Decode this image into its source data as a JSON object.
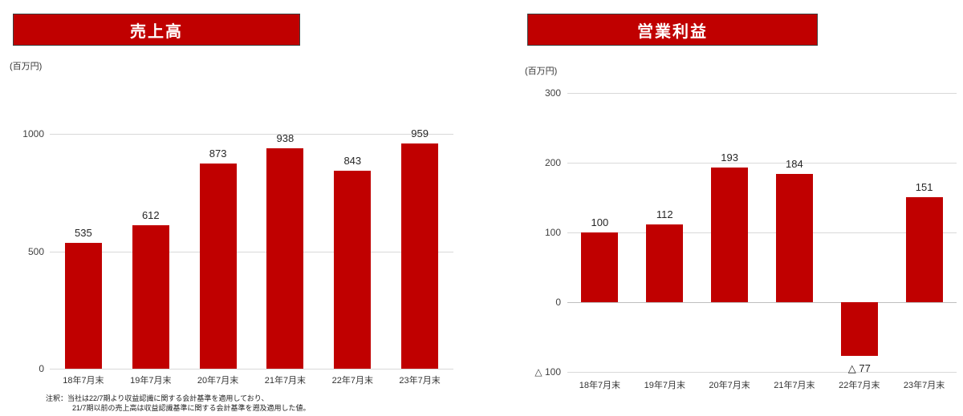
{
  "chart_data": [
    {
      "type": "bar",
      "title": "売上高",
      "unit_label": "(百万円)",
      "categories": [
        "18年7月末",
        "19年7月末",
        "20年7月末",
        "21年7月末",
        "22年7月末",
        "23年7月末"
      ],
      "values": [
        535,
        612,
        873,
        938,
        843,
        959
      ],
      "value_labels": [
        "535",
        "612",
        "873",
        "938",
        "843",
        "959"
      ],
      "ylim": [
        0,
        1000
      ],
      "yticks": [
        {
          "value": 1000,
          "label": "1000"
        },
        {
          "value": 500,
          "label": "500"
        },
        {
          "value": 0,
          "label": "0"
        }
      ],
      "grid": true,
      "legend": "none",
      "bar_color": "#c00000",
      "note_lines": [
        "注釈：当社は22/7期より収益認識に関する会計基準を適用しており、",
        "21/7期以前の売上高は収益認識基準に関する会計基準を遡及適用した値。"
      ]
    },
    {
      "type": "bar",
      "title": "営業利益",
      "unit_label": "(百万円)",
      "categories": [
        "18年7月末",
        "19年7月末",
        "20年7月末",
        "21年7月末",
        "22年7月末",
        "23年7月末"
      ],
      "values": [
        100,
        112,
        193,
        184,
        -77,
        151
      ],
      "value_labels": [
        "100",
        "112",
        "193",
        "184",
        "△ 77",
        "151"
      ],
      "ylim": [
        -100,
        300
      ],
      "yticks": [
        {
          "value": 300,
          "label": "300"
        },
        {
          "value": 200,
          "label": "200"
        },
        {
          "value": 100,
          "label": "100"
        },
        {
          "value": 0,
          "label": "0"
        },
        {
          "value": -100,
          "label": "△ 100"
        }
      ],
      "grid": true,
      "legend": "none",
      "bar_color": "#c00000",
      "note_lines": []
    }
  ],
  "colors": {
    "accent": "#c00000",
    "gridline": "#d9d9d9",
    "text": "#262626",
    "banner_text": "#ffffff"
  }
}
